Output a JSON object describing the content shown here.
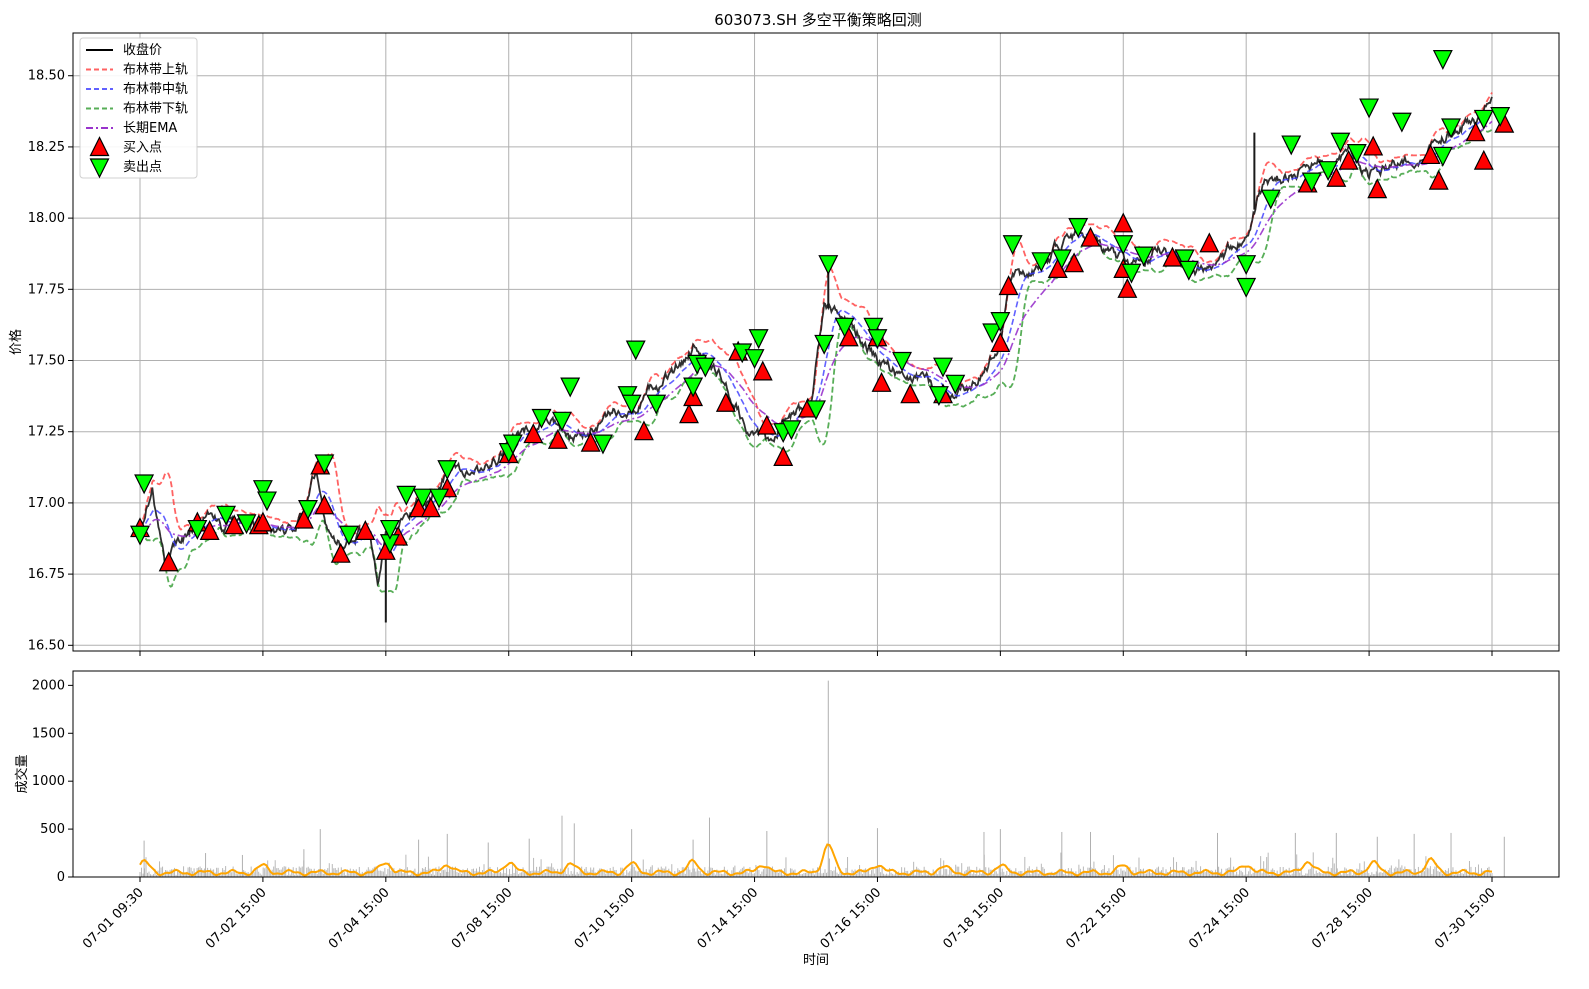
{
  "chart_data": [
    {
      "type": "line",
      "title": "603073.SH 多空平衡策略回测",
      "xlabel": "",
      "ylabel": "价格",
      "ylim": [
        16.48,
        18.65
      ],
      "grid": true,
      "legend_position": "top-left",
      "x_range_hours": [
        0,
        330
      ],
      "y_ticks": [
        "16.50",
        "16.75",
        "17.00",
        "17.25",
        "17.50",
        "17.75",
        "18.00",
        "18.25",
        "18.50"
      ],
      "legend": [
        {
          "label": "收盘价",
          "style": "solid",
          "color": "#000000"
        },
        {
          "label": "布林带上轨",
          "style": "dashed",
          "color": "#ff3b3b"
        },
        {
          "label": "布林带中轨",
          "style": "dashed",
          "color": "#3a3aff"
        },
        {
          "label": "布林带下轨",
          "style": "dashed",
          "color": "#2e9a2e"
        },
        {
          "label": "长期EMA",
          "style": "dashdot",
          "color": "#9933cc"
        },
        {
          "label": "买入点",
          "style": "marker-up",
          "color": "#ff0000"
        },
        {
          "label": "卖出点",
          "style": "marker-down",
          "color": "#00ff00"
        }
      ],
      "price_anchors": [
        [
          0,
          16.9
        ],
        [
          3,
          17.05
        ],
        [
          6,
          16.8
        ],
        [
          9,
          16.85
        ],
        [
          13,
          16.92
        ],
        [
          17,
          16.98
        ],
        [
          20,
          16.92
        ],
        [
          25,
          16.9
        ],
        [
          30,
          16.93
        ],
        [
          35,
          16.9
        ],
        [
          40,
          16.95
        ],
        [
          43,
          17.1
        ],
        [
          47,
          16.85
        ],
        [
          52,
          16.88
        ],
        [
          56,
          16.9
        ],
        [
          58,
          16.7
        ],
        [
          60,
          16.88
        ],
        [
          64,
          16.98
        ],
        [
          70,
          17.0
        ],
        [
          75,
          17.1
        ],
        [
          80,
          17.1
        ],
        [
          85,
          17.13
        ],
        [
          90,
          17.2
        ],
        [
          95,
          17.25
        ],
        [
          100,
          17.28
        ],
        [
          105,
          17.22
        ],
        [
          110,
          17.25
        ],
        [
          115,
          17.3
        ],
        [
          120,
          17.35
        ],
        [
          125,
          17.4
        ],
        [
          130,
          17.45
        ],
        [
          135,
          17.55
        ],
        [
          140,
          17.5
        ],
        [
          145,
          17.35
        ],
        [
          150,
          17.22
        ],
        [
          154,
          17.22
        ],
        [
          158,
          17.3
        ],
        [
          164,
          17.35
        ],
        [
          167,
          17.7
        ],
        [
          170,
          17.65
        ],
        [
          175,
          17.6
        ],
        [
          180,
          17.5
        ],
        [
          185,
          17.45
        ],
        [
          190,
          17.42
        ],
        [
          195,
          17.4
        ],
        [
          200,
          17.38
        ],
        [
          205,
          17.45
        ],
        [
          210,
          17.55
        ],
        [
          213,
          17.8
        ],
        [
          216,
          17.8
        ],
        [
          220,
          17.85
        ],
        [
          225,
          17.9
        ],
        [
          230,
          17.95
        ],
        [
          235,
          17.9
        ],
        [
          240,
          17.85
        ],
        [
          245,
          17.85
        ],
        [
          250,
          17.9
        ],
        [
          255,
          17.85
        ],
        [
          260,
          17.82
        ],
        [
          265,
          17.85
        ],
        [
          270,
          17.95
        ],
        [
          275,
          18.15
        ],
        [
          280,
          18.15
        ],
        [
          285,
          18.2
        ],
        [
          290,
          18.2
        ],
        [
          295,
          18.25
        ],
        [
          300,
          18.15
        ],
        [
          305,
          18.18
        ],
        [
          310,
          18.2
        ],
        [
          315,
          18.25
        ],
        [
          320,
          18.3
        ],
        [
          325,
          18.35
        ],
        [
          330,
          18.38
        ]
      ],
      "spikes": [
        [
          168,
          17.85
        ],
        [
          60,
          16.58
        ],
        [
          272,
          18.3
        ]
      ],
      "buy_points": [
        [
          0,
          16.91
        ],
        [
          7,
          16.79
        ],
        [
          14,
          16.93
        ],
        [
          17,
          16.9
        ],
        [
          23,
          16.92
        ],
        [
          29,
          16.92
        ],
        [
          30,
          16.93
        ],
        [
          40,
          16.94
        ],
        [
          44,
          17.13
        ],
        [
          45,
          16.99
        ],
        [
          49,
          16.82
        ],
        [
          55,
          16.9
        ],
        [
          60,
          16.83
        ],
        [
          63,
          16.88
        ],
        [
          68,
          16.98
        ],
        [
          71,
          16.98
        ],
        [
          75,
          17.05
        ],
        [
          90,
          17.17
        ],
        [
          96,
          17.24
        ],
        [
          102,
          17.22
        ],
        [
          110,
          17.21
        ],
        [
          123,
          17.25
        ],
        [
          134,
          17.31
        ],
        [
          135,
          17.37
        ],
        [
          143,
          17.35
        ],
        [
          146,
          17.53
        ],
        [
          152,
          17.46
        ],
        [
          153,
          17.27
        ],
        [
          157,
          17.16
        ],
        [
          163,
          17.33
        ],
        [
          173,
          17.58
        ],
        [
          180,
          17.58
        ],
        [
          181,
          17.42
        ],
        [
          188,
          17.38
        ],
        [
          196,
          17.38
        ],
        [
          210,
          17.56
        ],
        [
          212,
          17.76
        ],
        [
          224,
          17.82
        ],
        [
          228,
          17.84
        ],
        [
          232,
          17.93
        ],
        [
          240,
          17.98
        ],
        [
          240,
          17.82
        ],
        [
          241,
          17.75
        ],
        [
          252,
          17.86
        ],
        [
          261,
          17.91
        ],
        [
          285,
          18.12
        ],
        [
          292,
          18.14
        ],
        [
          295,
          18.2
        ],
        [
          301,
          18.25
        ],
        [
          302,
          18.1
        ],
        [
          315,
          18.22
        ],
        [
          317,
          18.13
        ],
        [
          326,
          18.3
        ],
        [
          328,
          18.2
        ],
        [
          333,
          18.33
        ]
      ],
      "sell_points": [
        [
          0,
          16.89
        ],
        [
          1,
          17.07
        ],
        [
          14,
          16.91
        ],
        [
          21,
          16.96
        ],
        [
          26,
          16.93
        ],
        [
          30,
          17.05
        ],
        [
          31,
          17.01
        ],
        [
          41,
          16.98
        ],
        [
          45,
          17.14
        ],
        [
          51,
          16.89
        ],
        [
          61,
          16.86
        ],
        [
          61,
          16.91
        ],
        [
          65,
          17.03
        ],
        [
          69,
          17.02
        ],
        [
          73,
          17.02
        ],
        [
          75,
          17.12
        ],
        [
          90,
          17.18
        ],
        [
          91,
          17.21
        ],
        [
          98,
          17.3
        ],
        [
          103,
          17.29
        ],
        [
          105,
          17.41
        ],
        [
          113,
          17.21
        ],
        [
          119,
          17.38
        ],
        [
          120,
          17.35
        ],
        [
          121,
          17.54
        ],
        [
          126,
          17.35
        ],
        [
          135,
          17.41
        ],
        [
          136,
          17.49
        ],
        [
          138,
          17.48
        ],
        [
          147,
          17.53
        ],
        [
          150,
          17.51
        ],
        [
          151,
          17.58
        ],
        [
          157,
          17.25
        ],
        [
          159,
          17.26
        ],
        [
          165,
          17.33
        ],
        [
          167,
          17.56
        ],
        [
          168,
          17.84
        ],
        [
          172,
          17.62
        ],
        [
          179,
          17.62
        ],
        [
          180,
          17.58
        ],
        [
          186,
          17.5
        ],
        [
          195,
          17.38
        ],
        [
          196,
          17.48
        ],
        [
          199,
          17.42
        ],
        [
          208,
          17.6
        ],
        [
          210,
          17.64
        ],
        [
          213,
          17.91
        ],
        [
          220,
          17.85
        ],
        [
          225,
          17.86
        ],
        [
          229,
          17.97
        ],
        [
          240,
          17.91
        ],
        [
          242,
          17.81
        ],
        [
          245,
          17.87
        ],
        [
          255,
          17.86
        ],
        [
          256,
          17.82
        ],
        [
          270,
          17.84
        ],
        [
          270,
          17.76
        ],
        [
          276,
          18.07
        ],
        [
          281,
          18.26
        ],
        [
          286,
          18.13
        ],
        [
          290,
          18.17
        ],
        [
          293,
          18.27
        ],
        [
          297,
          18.23
        ],
        [
          300,
          18.39
        ],
        [
          308,
          18.34
        ],
        [
          318,
          18.56
        ],
        [
          318,
          18.22
        ],
        [
          320,
          18.32
        ],
        [
          328,
          18.35
        ],
        [
          332,
          18.36
        ]
      ]
    },
    {
      "type": "bar",
      "xlabel": "时间",
      "ylabel": "成交量",
      "ylim": [
        0,
        2150
      ],
      "grid": false,
      "y_ticks": [
        "0",
        "500",
        "1000",
        "1500",
        "2000"
      ],
      "x_tick_labels": [
        "07-01 09:30",
        "07-02 15:00",
        "07-04 15:00",
        "07-08 15:00",
        "07-10 15:00",
        "07-14 15:00",
        "07-16 15:00",
        "07-18 15:00",
        "07-22 15:00",
        "07-24 15:00",
        "07-28 15:00",
        "07-30 15:00"
      ],
      "x_tick_hours": [
        0,
        30,
        60,
        90,
        120,
        150,
        180,
        210,
        240,
        270,
        300,
        330
      ],
      "series": [
        {
          "role": "volume",
          "color": "#c0c0c0",
          "max": 2050,
          "max_at_hour": 168
        },
        {
          "role": "volume-ma",
          "color": "#ffa500",
          "peak": 350,
          "peak_at_hour": 168
        }
      ],
      "volume_highlights": [
        [
          1,
          380
        ],
        [
          16,
          250
        ],
        [
          25,
          230
        ],
        [
          40,
          290
        ],
        [
          44,
          500
        ],
        [
          68,
          390
        ],
        [
          75,
          450
        ],
        [
          85,
          360
        ],
        [
          95,
          400
        ],
        [
          103,
          640
        ],
        [
          106,
          560
        ],
        [
          120,
          500
        ],
        [
          135,
          390
        ],
        [
          139,
          620
        ],
        [
          153,
          480
        ],
        [
          168,
          2050
        ],
        [
          180,
          510
        ],
        [
          206,
          470
        ],
        [
          210,
          500
        ],
        [
          225,
          470
        ],
        [
          232,
          470
        ],
        [
          263,
          460
        ],
        [
          282,
          460
        ],
        [
          292,
          460
        ],
        [
          302,
          420
        ],
        [
          311,
          450
        ],
        [
          320,
          460
        ],
        [
          333,
          420
        ]
      ],
      "volume_ma_peaks": [
        [
          1,
          170
        ],
        [
          30,
          130
        ],
        [
          60,
          170
        ],
        [
          75,
          150
        ],
        [
          90,
          170
        ],
        [
          105,
          150
        ],
        [
          120,
          150
        ],
        [
          135,
          170
        ],
        [
          152,
          150
        ],
        [
          168,
          350
        ],
        [
          180,
          150
        ],
        [
          196,
          120
        ],
        [
          210,
          130
        ],
        [
          240,
          130
        ],
        [
          270,
          150
        ],
        [
          285,
          180
        ],
        [
          301,
          160
        ],
        [
          315,
          190
        ],
        [
          333,
          80
        ]
      ]
    }
  ]
}
